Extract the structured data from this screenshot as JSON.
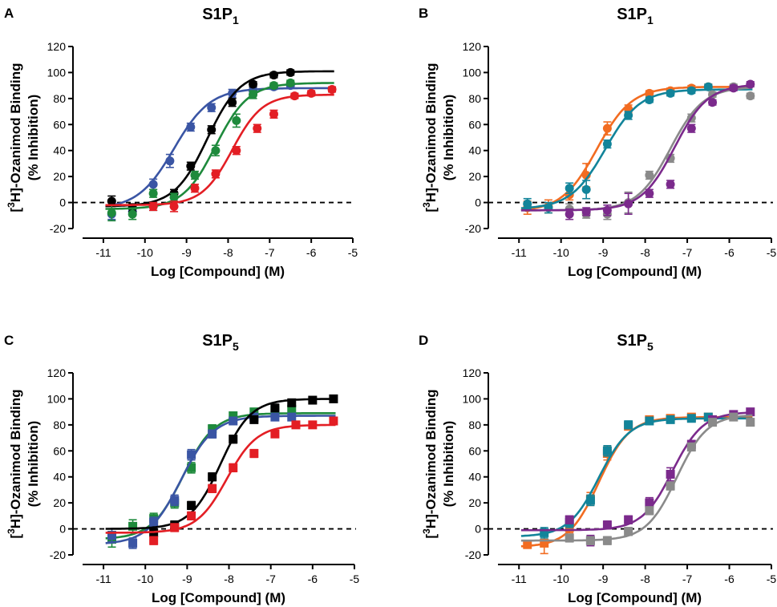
{
  "figure": {
    "y_axis_label_sup": "3",
    "y_axis_label_rest": "H]-Ozanimod Binding",
    "y_axis_label_line2": "(% Inhibition)",
    "x_axis_label": "Log [Compound] (M)",
    "colors": {
      "black": "#000000",
      "blue": "#3a55a4",
      "green": "#1e8a3c",
      "red": "#e31e24",
      "orange": "#f26c21",
      "teal": "#12849a",
      "gray": "#8a8a8a",
      "purple": "#7b2a8c"
    }
  },
  "chart_data": [
    {
      "panel": "A",
      "type": "scatter",
      "title_base": "S1P",
      "title_sub": "1",
      "xlim": [
        -11.5,
        -5
      ],
      "ylim": [
        -20,
        120
      ],
      "xticks": [
        "-11",
        "-10",
        "-9",
        "-8",
        "-7",
        "-6",
        "-5"
      ],
      "yticks": [
        "-20",
        "0",
        "20",
        "40",
        "60",
        "80",
        "100",
        "120"
      ],
      "marker": "circle",
      "series": [
        {
          "name": "blue",
          "color": "blue",
          "fit": {
            "bottom": -5,
            "top": 88,
            "logEC50": -9.3,
            "hill": 1.0
          },
          "points": [
            [
              -10.8,
              -9,
              4
            ],
            [
              -10.3,
              -7,
              3
            ],
            [
              -9.8,
              14,
              4
            ],
            [
              -9.4,
              32,
              5
            ],
            [
              -8.9,
              58,
              3
            ],
            [
              -8.4,
              73,
              3
            ],
            [
              -7.9,
              84,
              3
            ],
            [
              -7.4,
              86,
              2
            ],
            [
              -6.9,
              89,
              2
            ],
            [
              -6.5,
              90,
              2
            ]
          ]
        },
        {
          "name": "black",
          "color": "black",
          "fit": {
            "bottom": -3,
            "top": 101,
            "logEC50": -8.5,
            "hill": 1.1
          },
          "points": [
            [
              -10.8,
              1,
              4
            ],
            [
              -10.3,
              -4,
              3
            ],
            [
              -9.8,
              -3,
              3
            ],
            [
              -9.3,
              7,
              3
            ],
            [
              -8.9,
              28,
              3
            ],
            [
              -8.4,
              56,
              3
            ],
            [
              -7.9,
              77,
              3
            ],
            [
              -7.4,
              91,
              2
            ],
            [
              -6.9,
              98,
              2
            ],
            [
              -6.5,
              100,
              2
            ]
          ]
        },
        {
          "name": "green",
          "color": "green",
          "fit": {
            "bottom": -5,
            "top": 92,
            "logEC50": -8.3,
            "hill": 1.1
          },
          "points": [
            [
              -10.8,
              -8,
              6
            ],
            [
              -10.3,
              -9,
              4
            ],
            [
              -9.8,
              7,
              3
            ],
            [
              -9.3,
              4,
              3
            ],
            [
              -8.8,
              21,
              3
            ],
            [
              -8.3,
              40,
              4
            ],
            [
              -7.8,
              63,
              5
            ],
            [
              -7.4,
              83,
              3
            ],
            [
              -6.9,
              90,
              2
            ],
            [
              -6.5,
              92,
              2
            ]
          ]
        },
        {
          "name": "red",
          "color": "red",
          "fit": {
            "bottom": -2,
            "top": 83,
            "logEC50": -7.9,
            "hill": 1.2
          },
          "points": [
            [
              -9.8,
              -3,
              3
            ],
            [
              -9.3,
              -3,
              4
            ],
            [
              -8.8,
              11,
              3
            ],
            [
              -8.3,
              22,
              3
            ],
            [
              -7.8,
              40,
              3
            ],
            [
              -7.3,
              57,
              3
            ],
            [
              -6.9,
              68,
              3
            ],
            [
              -6.4,
              82,
              2
            ],
            [
              -6.0,
              84,
              2
            ],
            [
              -5.5,
              87,
              2
            ]
          ]
        }
      ]
    },
    {
      "panel": "B",
      "type": "scatter",
      "title_base": "S1P",
      "title_sub": "1",
      "xlim": [
        -11.5,
        -5
      ],
      "ylim": [
        -20,
        120
      ],
      "xticks": [
        "-11",
        "-10",
        "-9",
        "-8",
        "-7",
        "-6",
        "-5"
      ],
      "yticks": [
        "-20",
        "0",
        "20",
        "40",
        "60",
        "80",
        "100",
        "120"
      ],
      "marker": "circle",
      "series": [
        {
          "name": "orange",
          "color": "orange",
          "fit": {
            "bottom": -7,
            "top": 89,
            "logEC50": -9.15,
            "hill": 1.05
          },
          "points": [
            [
              -10.8,
              -4,
              5
            ],
            [
              -10.3,
              -3,
              5
            ],
            [
              -9.8,
              6,
              4
            ],
            [
              -9.4,
              21,
              9
            ],
            [
              -8.9,
              57,
              5
            ],
            [
              -8.4,
              72,
              3
            ],
            [
              -7.9,
              84,
              2
            ],
            [
              -7.4,
              86,
              2
            ],
            [
              -6.9,
              88,
              2
            ],
            [
              -6.5,
              89,
              2
            ]
          ]
        },
        {
          "name": "teal",
          "color": "teal",
          "fit": {
            "bottom": -5,
            "top": 87,
            "logEC50": -8.95,
            "hill": 1.05
          },
          "points": [
            [
              -10.8,
              -1,
              4
            ],
            [
              -10.3,
              -4,
              4
            ],
            [
              -9.8,
              11,
              4
            ],
            [
              -9.4,
              10,
              7
            ],
            [
              -8.9,
              45,
              3
            ],
            [
              -8.4,
              67,
              3
            ],
            [
              -7.9,
              79,
              2
            ],
            [
              -7.4,
              84,
              2
            ],
            [
              -6.9,
              86,
              2
            ],
            [
              -6.5,
              89,
              2
            ]
          ]
        },
        {
          "name": "gray",
          "color": "gray",
          "fit": {
            "bottom": -6,
            "top": 89,
            "logEC50": -7.4,
            "hill": 1.1
          },
          "points": [
            [
              -9.8,
              -5,
              4
            ],
            [
              -9.4,
              -9,
              3
            ],
            [
              -8.9,
              -9,
              4
            ],
            [
              -8.4,
              0,
              8
            ],
            [
              -7.9,
              21,
              3
            ],
            [
              -7.4,
              34,
              3
            ],
            [
              -6.9,
              65,
              3
            ],
            [
              -6.4,
              83,
              2
            ],
            [
              -5.9,
              89,
              2
            ],
            [
              -5.5,
              82,
              2
            ]
          ]
        },
        {
          "name": "purple",
          "color": "purple",
          "fit": {
            "bottom": -6,
            "top": 91,
            "logEC50": -7.3,
            "hill": 1.1
          },
          "points": [
            [
              -9.8,
              -9,
              4
            ],
            [
              -9.4,
              -7,
              3
            ],
            [
              -8.9,
              -6,
              4
            ],
            [
              -8.4,
              -1,
              8
            ],
            [
              -7.9,
              7,
              3
            ],
            [
              -7.4,
              14,
              3
            ],
            [
              -6.9,
              57,
              3
            ],
            [
              -6.4,
              77,
              2
            ],
            [
              -5.9,
              88,
              2
            ],
            [
              -5.5,
              91,
              2
            ]
          ]
        }
      ]
    },
    {
      "panel": "C",
      "type": "scatter",
      "title_base": "S1P",
      "title_sub": "5",
      "xlim": [
        -11.5,
        -5
      ],
      "ylim": [
        -20,
        120
      ],
      "xticks": [
        "-11",
        "-10",
        "-9",
        "-8",
        "-7",
        "-6",
        "-5"
      ],
      "yticks": [
        "-20",
        "0",
        "20",
        "40",
        "60",
        "80",
        "100",
        "120"
      ],
      "marker": "square",
      "series": [
        {
          "name": "green",
          "color": "green",
          "fit": {
            "bottom": -8,
            "top": 89,
            "logEC50": -9.1,
            "hill": 1.15
          },
          "points": [
            [
              -10.8,
              -8,
              6
            ],
            [
              -10.3,
              2,
              5
            ],
            [
              -9.8,
              8,
              4
            ],
            [
              -9.3,
              20,
              4
            ],
            [
              -8.9,
              47,
              4
            ],
            [
              -8.4,
              77,
              3
            ],
            [
              -7.9,
              87,
              2
            ],
            [
              -7.4,
              90,
              2
            ],
            [
              -6.9,
              91,
              2
            ],
            [
              -6.5,
              92,
              2
            ]
          ]
        },
        {
          "name": "blue",
          "color": "blue",
          "fit": {
            "bottom": -12,
            "top": 87,
            "logEC50": -9.15,
            "hill": 1.1
          },
          "points": [
            [
              -10.8,
              -5,
              5
            ],
            [
              -10.3,
              -11,
              4
            ],
            [
              -9.8,
              5,
              4
            ],
            [
              -9.3,
              22,
              4
            ],
            [
              -8.9,
              57,
              4
            ],
            [
              -8.4,
              73,
              3
            ],
            [
              -7.9,
              83,
              2
            ],
            [
              -7.4,
              86,
              2
            ],
            [
              -6.9,
              86,
              2
            ],
            [
              -6.5,
              86,
              2
            ]
          ]
        },
        {
          "name": "black",
          "color": "black",
          "fit": {
            "bottom": 0,
            "top": 100,
            "logEC50": -8.2,
            "hill": 1.2
          },
          "points": [
            [
              -9.8,
              -3,
              3
            ],
            [
              -9.3,
              3,
              3
            ],
            [
              -8.9,
              18,
              3
            ],
            [
              -8.4,
              40,
              3
            ],
            [
              -7.9,
              69,
              3
            ],
            [
              -7.4,
              84,
              2
            ],
            [
              -6.9,
              93,
              2
            ],
            [
              -6.5,
              97,
              2
            ],
            [
              -6.0,
              99,
              2
            ],
            [
              -5.5,
              100,
              2
            ]
          ]
        },
        {
          "name": "red",
          "color": "red",
          "fit": {
            "bottom": -3,
            "top": 80,
            "logEC50": -8.05,
            "hill": 1.2
          },
          "points": [
            [
              -9.8,
              -9,
              3
            ],
            [
              -9.3,
              1,
              3
            ],
            [
              -8.9,
              10,
              3
            ],
            [
              -8.4,
              31,
              3
            ],
            [
              -7.9,
              47,
              3
            ],
            [
              -7.4,
              58,
              3
            ],
            [
              -6.9,
              73,
              2
            ],
            [
              -6.4,
              80,
              2
            ],
            [
              -6.0,
              80,
              2
            ],
            [
              -5.5,
              83,
              2
            ]
          ]
        }
      ]
    },
    {
      "panel": "D",
      "type": "scatter",
      "title_base": "S1P",
      "title_sub": "5",
      "xlim": [
        -11.5,
        -5
      ],
      "ylim": [
        -20,
        120
      ],
      "xticks": [
        "-11",
        "-10",
        "-9",
        "-8",
        "-7",
        "-6",
        "-5"
      ],
      "yticks": [
        "-20",
        "0",
        "20",
        "40",
        "60",
        "80",
        "100",
        "120"
      ],
      "marker": "square",
      "series": [
        {
          "name": "orange",
          "color": "orange",
          "fit": {
            "bottom": -14,
            "top": 86,
            "logEC50": -9.1,
            "hill": 1.2
          },
          "points": [
            [
              -10.8,
              -12,
              3
            ],
            [
              -10.4,
              -11,
              8
            ],
            [
              -9.8,
              1,
              4
            ],
            [
              -9.3,
              23,
              5
            ],
            [
              -8.9,
              58,
              5
            ],
            [
              -8.4,
              79,
              3
            ],
            [
              -7.9,
              84,
              2
            ],
            [
              -7.4,
              85,
              2
            ],
            [
              -6.9,
              86,
              2
            ],
            [
              -6.5,
              86,
              2
            ]
          ]
        },
        {
          "name": "teal",
          "color": "teal",
          "fit": {
            "bottom": -6,
            "top": 85,
            "logEC50": -9.1,
            "hill": 1.2
          },
          "points": [
            [
              -10.4,
              -3,
              4
            ],
            [
              -9.8,
              5,
              4
            ],
            [
              -9.3,
              22,
              4
            ],
            [
              -8.9,
              60,
              4
            ],
            [
              -8.4,
              80,
              3
            ],
            [
              -7.9,
              83,
              2
            ],
            [
              -7.4,
              84,
              2
            ],
            [
              -6.9,
              85,
              2
            ],
            [
              -6.5,
              86,
              2
            ]
          ]
        },
        {
          "name": "purple",
          "color": "purple",
          "fit": {
            "bottom": -1,
            "top": 90,
            "logEC50": -7.35,
            "hill": 1.2
          },
          "points": [
            [
              -9.8,
              7,
              3
            ],
            [
              -9.3,
              -9,
              4
            ],
            [
              -8.9,
              3,
              3
            ],
            [
              -8.4,
              7,
              3
            ],
            [
              -7.9,
              20,
              4
            ],
            [
              -7.4,
              42,
              5
            ],
            [
              -6.9,
              65,
              3
            ],
            [
              -6.4,
              84,
              2
            ],
            [
              -5.9,
              88,
              2
            ],
            [
              -5.5,
              90,
              2
            ]
          ]
        },
        {
          "name": "gray",
          "color": "gray",
          "fit": {
            "bottom": -9,
            "top": 88,
            "logEC50": -7.25,
            "hill": 1.2
          },
          "points": [
            [
              -9.8,
              -7,
              3
            ],
            [
              -9.3,
              -9,
              3
            ],
            [
              -8.9,
              -9,
              3
            ],
            [
              -8.4,
              -2,
              3
            ],
            [
              -7.9,
              14,
              3
            ],
            [
              -7.4,
              33,
              3
            ],
            [
              -6.9,
              63,
              3
            ],
            [
              -6.4,
              82,
              2
            ],
            [
              -5.9,
              86,
              2
            ],
            [
              -5.5,
              82,
              2
            ]
          ]
        }
      ]
    }
  ]
}
